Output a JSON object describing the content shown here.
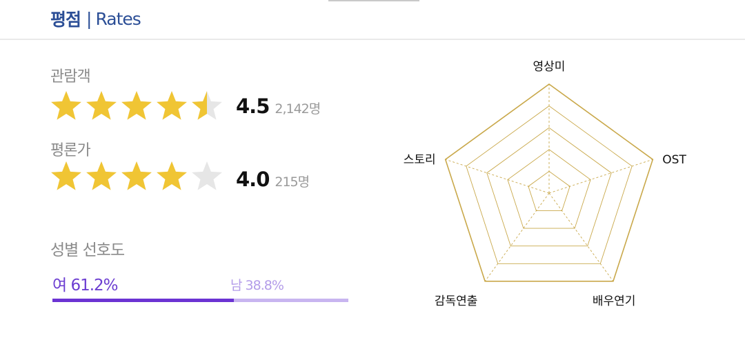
{
  "header": {
    "title_ko": "평점",
    "separator": "|",
    "title_en": "Rates"
  },
  "ratings": [
    {
      "label": "관람객",
      "score": "4.5",
      "count": "2,142명",
      "stars": 4.5
    },
    {
      "label": "평론가",
      "score": "4.0",
      "count": "215명",
      "stars": 4.0
    }
  ],
  "gender": {
    "title": "성별 선호도",
    "female_label": "여 61.2%",
    "male_label": "남 38.8%",
    "female_fraction": 0.612
  },
  "radar": {
    "axes": [
      "영상미",
      "OST",
      "배우연기",
      "감독연출",
      "스토리"
    ]
  },
  "colors": {
    "header": "#2b4e96",
    "star_on": "#f0c534",
    "star_off": "#e6e6e6",
    "female": "#6b33d3",
    "male": "#c8b5f0",
    "radar_line": "#c9a84a"
  }
}
